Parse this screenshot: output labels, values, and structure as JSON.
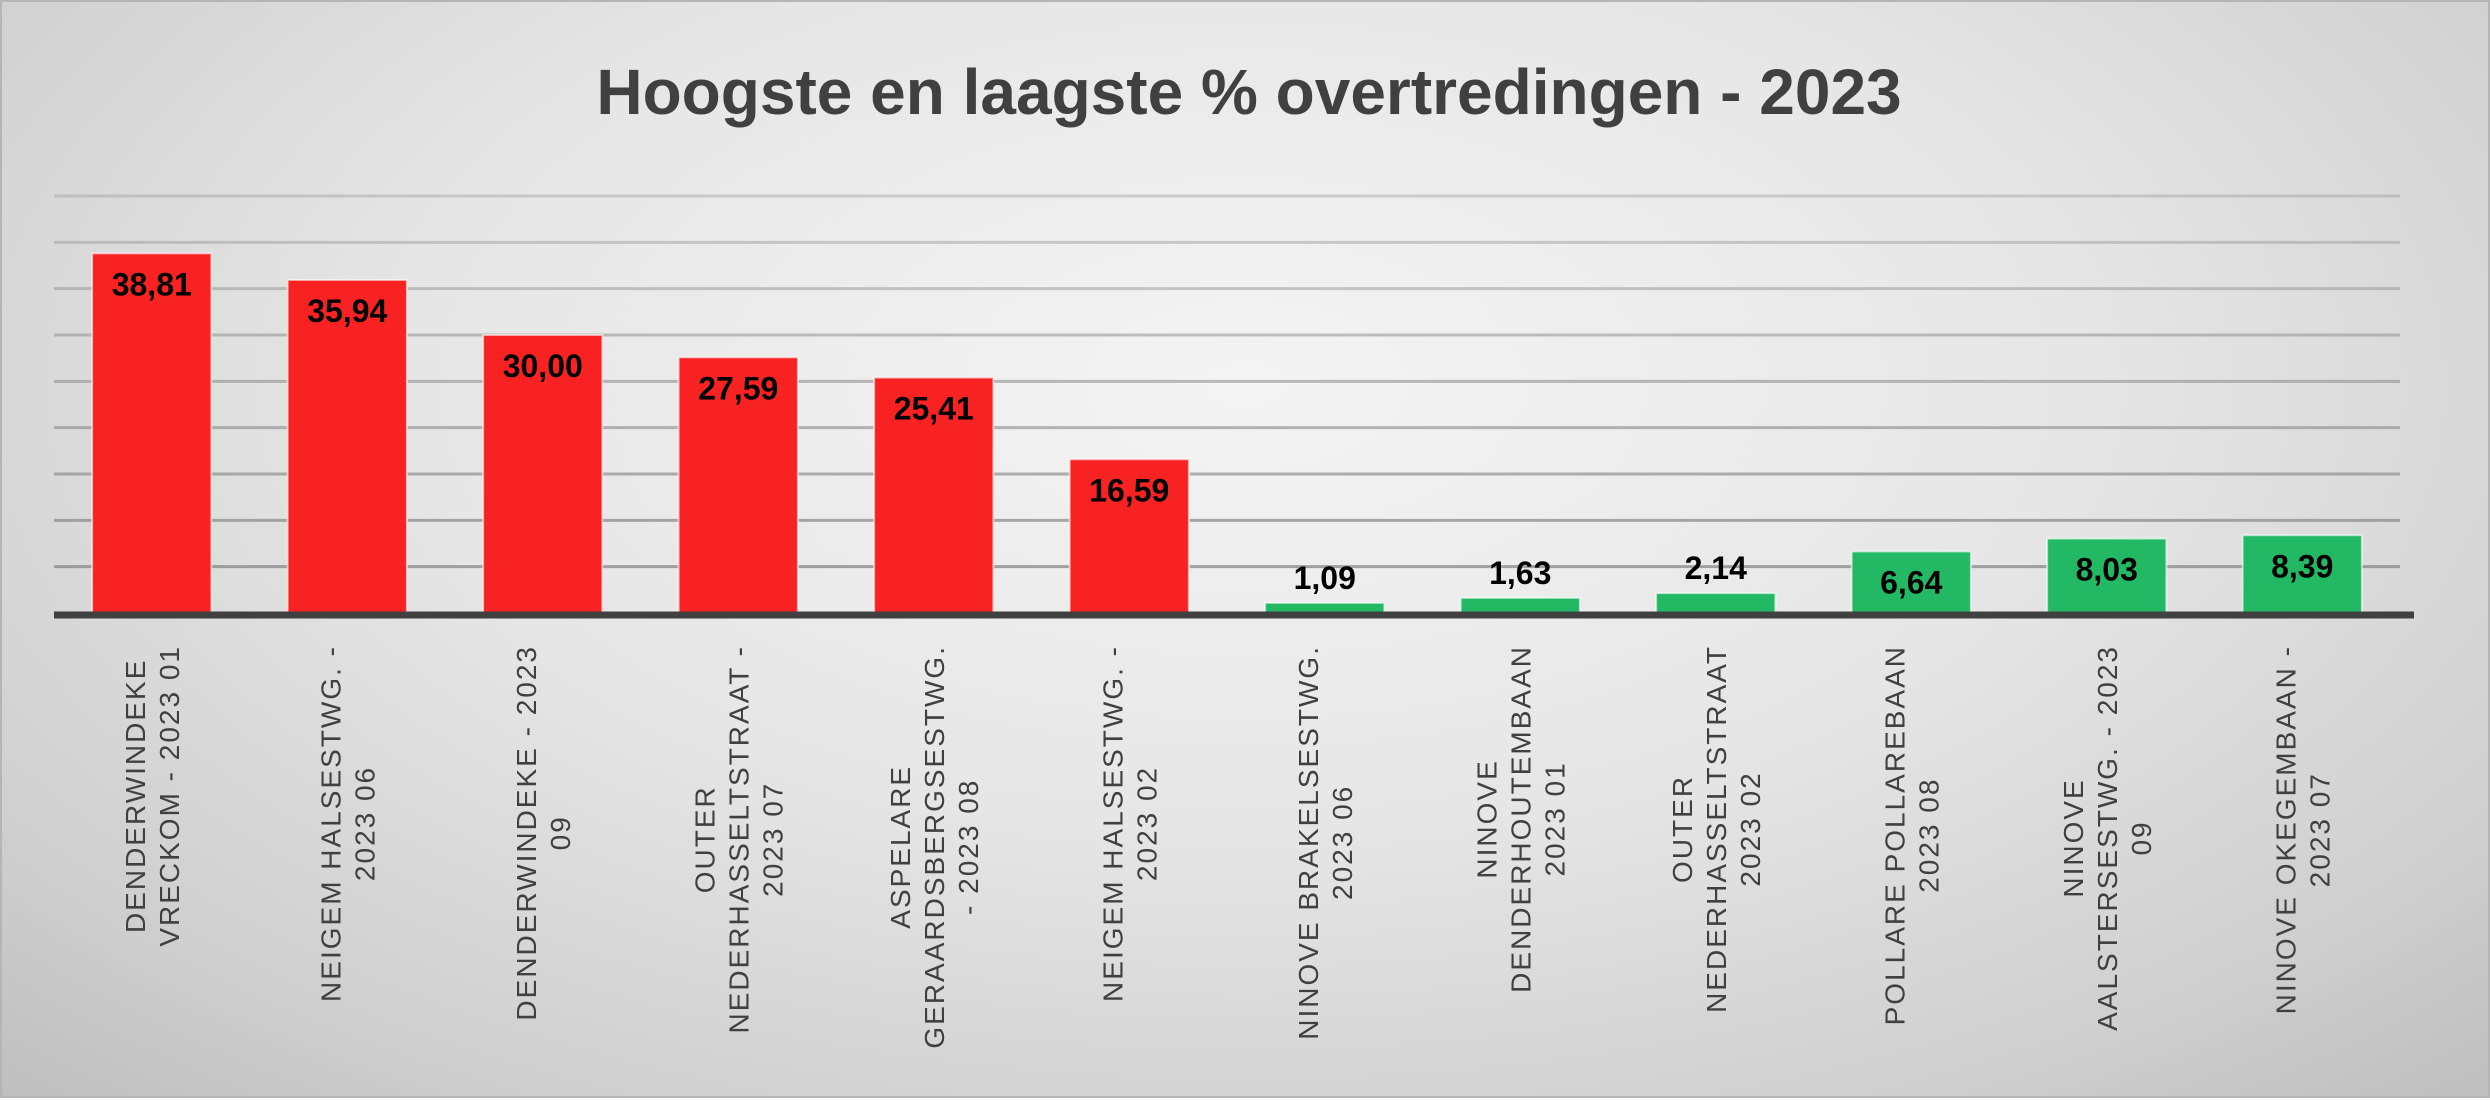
{
  "chart_data": {
    "type": "bar",
    "title": "Hoogste en laagste % overtredingen - 2023",
    "xlabel": "",
    "ylabel": "",
    "ylim": [
      0,
      45
    ],
    "grid": true,
    "gridline_step": 5,
    "colors": {
      "high": "#f82222",
      "low": "#22b864",
      "axis": "#404040",
      "grid": "#8c8c8c"
    },
    "categories": [
      {
        "lines": [
          "DENDERWINDEKE",
          "VRECKOM - 2023 01"
        ],
        "group": "high"
      },
      {
        "lines": [
          "NEIGEM HALSESTWG. -",
          "2023 06"
        ],
        "group": "high"
      },
      {
        "lines": [
          "DENDERWINDEKE - 2023",
          "09"
        ],
        "group": "high"
      },
      {
        "lines": [
          "OUTER",
          "NEDERHASSELTSTRAAT -",
          "2023 07"
        ],
        "group": "high"
      },
      {
        "lines": [
          "ASPELARE",
          "GERAARDSBERGSESTWG.",
          "- 2023 08"
        ],
        "group": "high"
      },
      {
        "lines": [
          "NEIGEM HALSESTWG. -",
          "2023 02"
        ],
        "group": "high"
      },
      {
        "lines": [
          "NINOVE BRAKELSESTWG.",
          "2023 06"
        ],
        "group": "low"
      },
      {
        "lines": [
          "NINOVE",
          "DENDERHOUTEMBAAN",
          "2023 01"
        ],
        "group": "low"
      },
      {
        "lines": [
          "OUTER",
          "NEDERHASSELTSTRAAT",
          "2023 02"
        ],
        "group": "low"
      },
      {
        "lines": [
          "POLLARE POLLAREBAAN",
          "2023 08"
        ],
        "group": "low"
      },
      {
        "lines": [
          "NINOVE",
          "AALSTERSESTWG. - 2023",
          "09"
        ],
        "group": "low"
      },
      {
        "lines": [
          "NINOVE OKEGEMBAAN -",
          "2023 07"
        ],
        "group": "low"
      }
    ],
    "values": [
      38.81,
      35.94,
      30.0,
      27.59,
      25.41,
      16.59,
      1.09,
      1.63,
      2.14,
      6.64,
      8.03,
      8.39
    ],
    "value_labels": [
      "38,81",
      "35,94",
      "30,00",
      "27,59",
      "25,41",
      "16,59",
      "1,09",
      "1,63",
      "2,14",
      "6,64",
      "8,03",
      "8,39"
    ]
  }
}
